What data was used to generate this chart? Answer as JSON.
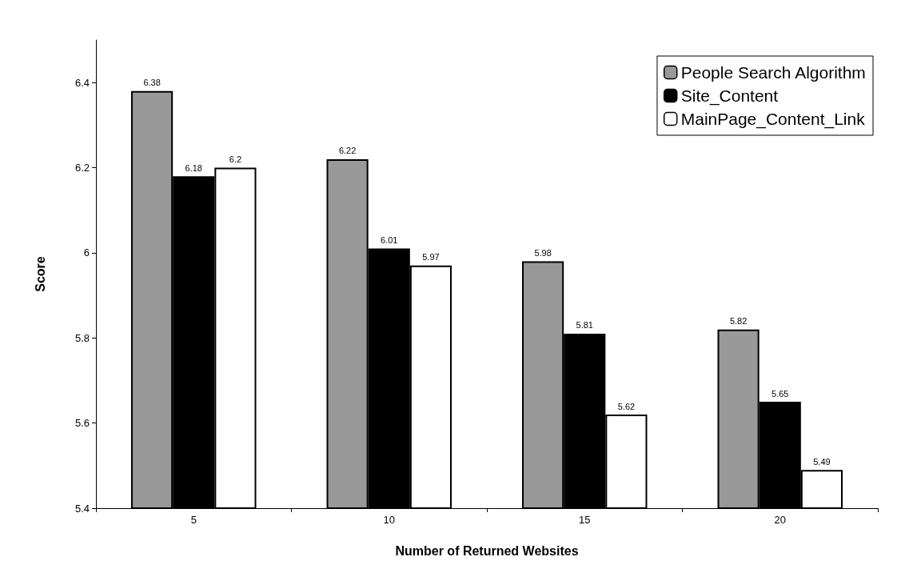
{
  "chart_data": {
    "type": "bar",
    "xlabel": "Number of Returned Websites",
    "ylabel": "Score",
    "categories": [
      "5",
      "10",
      "15",
      "20"
    ],
    "series": [
      {
        "name": "People Search Algorithm",
        "color": "#999999",
        "values": [
          6.38,
          6.22,
          5.98,
          5.82
        ]
      },
      {
        "name": "Site_Content",
        "color": "#000000",
        "values": [
          6.18,
          6.01,
          5.81,
          5.65
        ]
      },
      {
        "name": "MainPage_Content_Link",
        "color": "#ffffff",
        "values": [
          6.2,
          5.97,
          5.62,
          5.49
        ]
      }
    ],
    "ylim": [
      5.4,
      6.5
    ],
    "yticks": [
      5.4,
      5.6,
      5.8,
      6,
      6.2,
      6.4
    ],
    "data_labels": true,
    "legend": "top right",
    "grid": false
  }
}
